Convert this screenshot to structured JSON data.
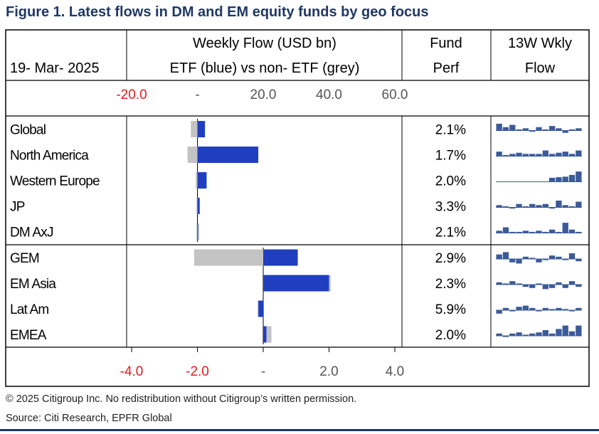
{
  "figure": {
    "title": "Figure 1. Latest flows in DM and EM equity funds by geo focus",
    "copyright": "© 2025 Citigroup Inc. No redistribution without Citigroup’s written permission.",
    "source": "Source: Citi Research, EPFR Global"
  },
  "header": {
    "date": "19- Mar- 2025",
    "flow_title_line1": "Weekly Flow (USD bn)",
    "flow_title_line2": "ETF (blue) vs non- ETF (grey)",
    "perf_line1": "Fund",
    "perf_line2": "Perf",
    "trend_line1": "13W Wkly",
    "trend_line2": "Flow"
  },
  "colors": {
    "etf": "#1f3fbf",
    "non_etf": "#c3c3c3",
    "sparkline": "#3a5a9a",
    "negative_tick": "#e21b1b"
  },
  "chart_data": [
    {
      "type": "bar",
      "orientation": "horizontal",
      "stacked": true,
      "panel": "DM",
      "categories": [
        "Global",
        "North America",
        "Western Europe",
        "JP",
        "DM AxJ"
      ],
      "series": [
        {
          "name": "ETF (blue)",
          "values": [
            2.3,
            18.5,
            2.8,
            0.7,
            0.3
          ]
        },
        {
          "name": "non- ETF (grey)",
          "values": [
            -2.0,
            -3.0,
            -0.5,
            -0.3,
            -0.3
          ]
        }
      ],
      "xlim": [
        -20,
        60
      ],
      "ticks": [
        {
          "value": -20,
          "label": "-20.0"
        },
        {
          "value": 0,
          "label": "-"
        },
        {
          "value": 20,
          "label": "20.0"
        },
        {
          "value": 40,
          "label": "40.0"
        },
        {
          "value": 60,
          "label": "60.0"
        }
      ],
      "fund_perf": [
        "2.1%",
        "1.7%",
        "2.0%",
        "3.3%",
        "2.1%"
      ],
      "sparklines": [
        [
          0.6,
          0.3,
          0.5,
          0.1,
          0.2,
          -0.1,
          0.3,
          0.1,
          0.4,
          0.2,
          -0.2,
          0.1,
          0.2
        ],
        [
          0.4,
          0.1,
          0.2,
          0.3,
          0.2,
          0.2,
          0.2,
          0.5,
          0.2,
          0.3,
          0.4,
          0.2,
          0.5
        ],
        [
          0.0,
          0.0,
          0.0,
          0.0,
          0.0,
          0.0,
          0.0,
          0.0,
          0.35,
          0.4,
          0.45,
          0.6,
          0.9
        ],
        [
          0.2,
          0.1,
          -0.1,
          0.3,
          0.1,
          0.3,
          0.2,
          0.3,
          -0.1,
          0.6,
          0.2,
          0.1,
          0.5
        ],
        [
          0.2,
          0.5,
          0.1,
          0.1,
          0.2,
          0.1,
          0.2,
          0.1,
          0.3,
          0.1,
          0.9,
          0.3,
          0.1
        ]
      ]
    },
    {
      "type": "bar",
      "orientation": "horizontal",
      "stacked": true,
      "panel": "EM",
      "categories": [
        "GEM",
        "EM Asia",
        "Lat Am",
        "EMEA"
      ],
      "series": [
        {
          "name": "ETF (blue)",
          "values": [
            1.05,
            2.0,
            -0.15,
            0.1
          ]
        },
        {
          "name": "non- ETF (grey)",
          "values": [
            -2.1,
            0.05,
            -0.02,
            0.15
          ]
        }
      ],
      "xlim": [
        -4,
        4
      ],
      "ticks": [
        {
          "value": -4,
          "label": "-4.0"
        },
        {
          "value": -2,
          "label": "-2.0"
        },
        {
          "value": 0,
          "label": "-"
        },
        {
          "value": 2,
          "label": "2.0"
        },
        {
          "value": 4,
          "label": "4.0"
        }
      ],
      "fund_perf": [
        "2.9%",
        "2.3%",
        "5.9%",
        "2.0%"
      ],
      "sparklines": [
        [
          0.4,
          0.6,
          -0.3,
          -0.4,
          0.2,
          0.1,
          -0.3,
          -0.1,
          0.3,
          0.2,
          -0.1,
          0.5,
          -0.2
        ],
        [
          0.2,
          0.1,
          0.3,
          0.1,
          -0.2,
          -0.3,
          0.1,
          -0.4,
          -0.3,
          0.2,
          -0.3,
          0.3,
          -0.2
        ],
        [
          -0.3,
          0.2,
          -0.1,
          0.3,
          0.4,
          0.2,
          -0.1,
          0.2,
          0.1,
          0.2,
          0.1,
          -0.1,
          0.2
        ],
        [
          0.2,
          -0.1,
          0.2,
          0.3,
          0.1,
          0.2,
          0.3,
          0.5,
          0.2,
          0.6,
          0.9,
          0.4,
          0.9
        ]
      ]
    }
  ]
}
